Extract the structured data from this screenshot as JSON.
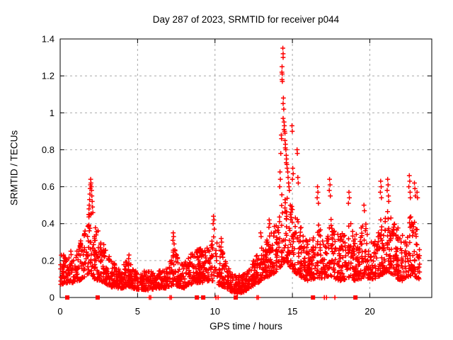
{
  "figure": {
    "background": "#ffffff"
  },
  "chart_data": {
    "type": "scatter",
    "title": "Day 287 of 2023, SRMTID for receiver p044",
    "xlabel": "GPS time / hours",
    "ylabel": "SRMTID / TECUs",
    "xlim": [
      0,
      24
    ],
    "ylim": [
      0,
      1.4
    ],
    "xticks": [
      0,
      5,
      10,
      15,
      20
    ],
    "xtick_labels": [
      "0",
      "5",
      "10",
      "15",
      "20"
    ],
    "yticks": [
      0,
      0.2,
      0.4,
      0.6,
      0.8,
      1,
      1.2,
      1.4
    ],
    "ytick_labels": [
      "0",
      "0.2",
      "0.4",
      "0.6",
      "0.8",
      "1",
      "1.2",
      "1.4"
    ],
    "grid": true,
    "legend": null,
    "marker_shape": "plus",
    "marker_color": "#ff0000",
    "grid_color": "#a8a8a8",
    "frame_color": "#000000",
    "text_color": "#000000",
    "data_time_range": [
      0.02,
      23.22
    ],
    "points_per_hour": 95,
    "value_bias_exponent": 1.7,
    "random_seed": 20231287,
    "envelope_keyframes": [
      [
        0.0,
        0.07,
        0.24
      ],
      [
        0.5,
        0.08,
        0.25
      ],
      [
        1.0,
        0.08,
        0.27
      ],
      [
        1.4,
        0.1,
        0.32
      ],
      [
        1.7,
        0.12,
        0.4
      ],
      [
        1.9,
        0.13,
        0.5
      ],
      [
        2.0,
        0.12,
        0.46
      ],
      [
        2.2,
        0.1,
        0.4
      ],
      [
        2.5,
        0.09,
        0.36
      ],
      [
        2.8,
        0.08,
        0.3
      ],
      [
        3.2,
        0.06,
        0.22
      ],
      [
        3.6,
        0.05,
        0.18
      ],
      [
        4.0,
        0.05,
        0.16
      ],
      [
        4.4,
        0.06,
        0.22
      ],
      [
        4.7,
        0.05,
        0.16
      ],
      [
        5.2,
        0.04,
        0.14
      ],
      [
        5.8,
        0.04,
        0.15
      ],
      [
        6.3,
        0.05,
        0.14
      ],
      [
        6.8,
        0.05,
        0.16
      ],
      [
        7.1,
        0.06,
        0.2
      ],
      [
        7.35,
        0.07,
        0.28
      ],
      [
        7.6,
        0.06,
        0.22
      ],
      [
        8.0,
        0.05,
        0.18
      ],
      [
        8.4,
        0.07,
        0.24
      ],
      [
        8.8,
        0.08,
        0.28
      ],
      [
        9.2,
        0.08,
        0.26
      ],
      [
        9.6,
        0.09,
        0.28
      ],
      [
        9.9,
        0.09,
        0.34
      ],
      [
        10.2,
        0.07,
        0.3
      ],
      [
        10.5,
        0.06,
        0.26
      ],
      [
        10.8,
        0.04,
        0.18
      ],
      [
        11.1,
        0.03,
        0.14
      ],
      [
        11.5,
        0.02,
        0.12
      ],
      [
        11.9,
        0.03,
        0.13
      ],
      [
        12.2,
        0.05,
        0.16
      ],
      [
        12.6,
        0.07,
        0.22
      ],
      [
        13.0,
        0.09,
        0.28
      ],
      [
        13.4,
        0.11,
        0.33
      ],
      [
        13.8,
        0.13,
        0.38
      ],
      [
        14.1,
        0.15,
        0.48
      ],
      [
        14.35,
        0.18,
        0.62
      ],
      [
        14.6,
        0.2,
        0.6
      ],
      [
        14.9,
        0.16,
        0.52
      ],
      [
        15.1,
        0.14,
        0.48
      ],
      [
        15.4,
        0.12,
        0.42
      ],
      [
        15.7,
        0.1,
        0.36
      ],
      [
        16.0,
        0.09,
        0.3
      ],
      [
        16.4,
        0.1,
        0.34
      ],
      [
        16.65,
        0.11,
        0.42
      ],
      [
        16.9,
        0.1,
        0.34
      ],
      [
        17.2,
        0.11,
        0.38
      ],
      [
        17.45,
        0.12,
        0.46
      ],
      [
        17.7,
        0.1,
        0.36
      ],
      [
        18.1,
        0.09,
        0.33
      ],
      [
        18.5,
        0.1,
        0.4
      ],
      [
        18.7,
        0.11,
        0.44
      ],
      [
        19.0,
        0.09,
        0.33
      ],
      [
        19.4,
        0.1,
        0.38
      ],
      [
        19.7,
        0.11,
        0.42
      ],
      [
        20.0,
        0.1,
        0.33
      ],
      [
        20.3,
        0.09,
        0.3
      ],
      [
        20.7,
        0.12,
        0.45
      ],
      [
        21.0,
        0.13,
        0.46
      ],
      [
        21.2,
        0.14,
        0.48
      ],
      [
        21.5,
        0.12,
        0.44
      ],
      [
        21.8,
        0.1,
        0.38
      ],
      [
        22.1,
        0.09,
        0.34
      ],
      [
        22.4,
        0.11,
        0.4
      ],
      [
        22.7,
        0.12,
        0.46
      ],
      [
        23.0,
        0.11,
        0.4
      ],
      [
        23.22,
        0.08,
        0.28
      ]
    ],
    "spike_points": [
      [
        1.97,
        0.64
      ],
      [
        1.99,
        0.62
      ],
      [
        1.96,
        0.61
      ],
      [
        2.01,
        0.6
      ],
      [
        1.94,
        0.59
      ],
      [
        2.03,
        0.58
      ],
      [
        1.92,
        0.56
      ],
      [
        2.05,
        0.55
      ],
      [
        1.9,
        0.53
      ],
      [
        2.07,
        0.52
      ],
      [
        1.88,
        0.5
      ],
      [
        2.09,
        0.49
      ],
      [
        1.86,
        0.48
      ],
      [
        2.11,
        0.46
      ],
      [
        1.84,
        0.45
      ],
      [
        4.45,
        0.23
      ],
      [
        4.42,
        0.21
      ],
      [
        7.3,
        0.35
      ],
      [
        7.33,
        0.33
      ],
      [
        7.28,
        0.31
      ],
      [
        7.36,
        0.29
      ],
      [
        9.9,
        0.44
      ],
      [
        9.93,
        0.42
      ],
      [
        9.88,
        0.4
      ],
      [
        9.95,
        0.37
      ],
      [
        10.4,
        0.32
      ],
      [
        10.43,
        0.3
      ],
      [
        12.95,
        0.35
      ],
      [
        12.98,
        0.33
      ],
      [
        13.5,
        0.42
      ],
      [
        13.53,
        0.4
      ],
      [
        13.48,
        0.38
      ],
      [
        14.2,
        0.68
      ],
      [
        14.22,
        0.64
      ],
      [
        14.18,
        0.6
      ],
      [
        14.38,
        1.35
      ],
      [
        14.4,
        1.32
      ],
      [
        14.4,
        1.3
      ],
      [
        14.33,
        1.25
      ],
      [
        14.32,
        1.22
      ],
      [
        14.34,
        1.21
      ],
      [
        14.33,
        1.18
      ],
      [
        14.35,
        1.17
      ],
      [
        14.42,
        1.08
      ],
      [
        14.4,
        1.05
      ],
      [
        14.44,
        1.02
      ],
      [
        14.4,
        0.97
      ],
      [
        14.46,
        0.95
      ],
      [
        14.48,
        0.93
      ],
      [
        14.46,
        0.91
      ],
      [
        14.5,
        0.9
      ],
      [
        14.52,
        0.89
      ],
      [
        14.28,
        0.88
      ],
      [
        14.3,
        0.86
      ],
      [
        14.52,
        0.85
      ],
      [
        14.55,
        0.83
      ],
      [
        14.54,
        0.81
      ],
      [
        14.58,
        0.8
      ],
      [
        14.25,
        0.78
      ],
      [
        14.6,
        0.77
      ],
      [
        14.62,
        0.75
      ],
      [
        14.6,
        0.73
      ],
      [
        14.64,
        0.72
      ],
      [
        14.66,
        0.7
      ],
      [
        14.7,
        0.68
      ],
      [
        14.72,
        0.65
      ],
      [
        14.75,
        0.62
      ],
      [
        14.78,
        0.6
      ],
      [
        14.8,
        0.58
      ],
      [
        14.97,
        0.93
      ],
      [
        14.99,
        0.9
      ],
      [
        15.02,
        0.7
      ],
      [
        15.05,
        0.67
      ],
      [
        15.0,
        0.64
      ],
      [
        15.3,
        0.8
      ],
      [
        15.32,
        0.78
      ],
      [
        15.35,
        0.65
      ],
      [
        15.38,
        0.62
      ],
      [
        16.62,
        0.6
      ],
      [
        16.65,
        0.57
      ],
      [
        16.6,
        0.54
      ],
      [
        16.68,
        0.51
      ],
      [
        17.4,
        0.64
      ],
      [
        17.43,
        0.61
      ],
      [
        17.38,
        0.58
      ],
      [
        17.45,
        0.55
      ],
      [
        18.65,
        0.57
      ],
      [
        18.68,
        0.54
      ],
      [
        18.62,
        0.51
      ],
      [
        19.62,
        0.5
      ],
      [
        19.65,
        0.47
      ],
      [
        20.7,
        0.63
      ],
      [
        20.73,
        0.6
      ],
      [
        20.68,
        0.57
      ],
      [
        20.75,
        0.54
      ],
      [
        21.15,
        0.64
      ],
      [
        21.18,
        0.61
      ],
      [
        21.12,
        0.58
      ],
      [
        21.2,
        0.55
      ],
      [
        21.22,
        0.52
      ],
      [
        22.55,
        0.66
      ],
      [
        22.58,
        0.63
      ],
      [
        22.52,
        0.6
      ],
      [
        22.6,
        0.57
      ],
      [
        22.62,
        0.54
      ],
      [
        22.88,
        0.62
      ],
      [
        22.91,
        0.59
      ],
      [
        22.94,
        0.55
      ],
      [
        23.05,
        0.57
      ],
      [
        23.08,
        0.54
      ]
    ],
    "axis_square_times": [
      0.46,
      2.42,
      8.83,
      9.24,
      11.34,
      16.33,
      19.07
    ],
    "axis_plus_times": [
      5.76,
      5.85,
      7.09,
      7.18,
      10.06,
      10.2,
      12.71,
      12.8,
      17.06,
      17.2,
      17.74
    ]
  }
}
